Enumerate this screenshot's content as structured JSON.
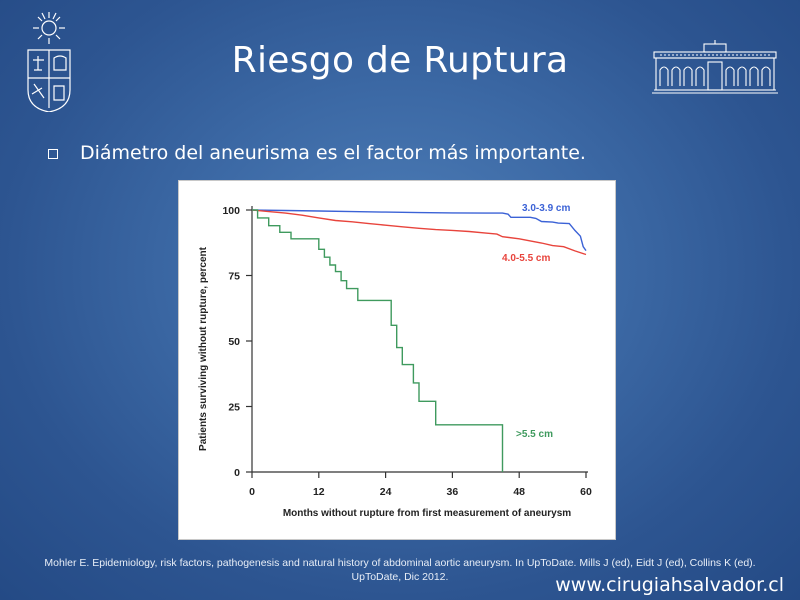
{
  "slide": {
    "title": "Riesgo de Ruptura",
    "bullet": "Diámetro del aneurisma es el factor más importante.",
    "citation_line1": "Mohler E. Epidemiology, risk factors, pathogenesis and natural history of abdominal aortic aneurysm.  In UpToDate.  Mills J (ed),  Eidt J (ed),  Collins K (ed).",
    "citation_line2": "UpToDate,  Dic 2012.",
    "website": "www.cirugiahsalvador.cl",
    "logos": {
      "left": "university-crest-icon",
      "right": "hospital-building-icon"
    },
    "colors": {
      "background": "#2d5591",
      "text": "#ffffff"
    }
  },
  "chart_data": {
    "type": "line",
    "title": "",
    "xlabel": "Months without rupture from first measurement of aneurysm",
    "ylabel": "Patients surviving without rupture, percent",
    "xlim": [
      0,
      60
    ],
    "ylim": [
      0,
      100
    ],
    "xticks": [
      0,
      12,
      24,
      36,
      48,
      60
    ],
    "yticks": [
      0,
      25,
      50,
      75,
      100
    ],
    "grid": false,
    "series": [
      {
        "name": "3.0-3.9 cm",
        "color": "#3b62d6",
        "points": [
          [
            0,
            100
          ],
          [
            6,
            99.8
          ],
          [
            12,
            99.6
          ],
          [
            18,
            99.4
          ],
          [
            24,
            99.2
          ],
          [
            30,
            99.0
          ],
          [
            36,
            98.9
          ],
          [
            42,
            98.8
          ],
          [
            45,
            98.8
          ],
          [
            46,
            98.4
          ],
          [
            46.5,
            97.2
          ],
          [
            50,
            97.2
          ],
          [
            51,
            96.8
          ],
          [
            52,
            95.6
          ],
          [
            54,
            95.4
          ],
          [
            55,
            95.0
          ],
          [
            57,
            94.8
          ],
          [
            58,
            92.2
          ],
          [
            59,
            90.0
          ],
          [
            59.5,
            86.0
          ],
          [
            60,
            84.5
          ]
        ]
      },
      {
        "name": "4.0-5.5 cm",
        "color": "#e8443c",
        "points": [
          [
            0,
            100
          ],
          [
            3,
            99.4
          ],
          [
            6,
            98.8
          ],
          [
            9,
            98.0
          ],
          [
            12,
            97.0
          ],
          [
            15,
            96.0
          ],
          [
            18,
            95.5
          ],
          [
            21,
            94.8
          ],
          [
            24,
            94.2
          ],
          [
            27,
            93.6
          ],
          [
            30,
            93.0
          ],
          [
            33,
            92.5
          ],
          [
            36,
            92.2
          ],
          [
            39,
            91.8
          ],
          [
            42,
            91.2
          ],
          [
            44,
            90.8
          ],
          [
            45,
            89.8
          ],
          [
            48,
            89.0
          ],
          [
            50,
            88.2
          ],
          [
            52,
            87.4
          ],
          [
            54,
            86.4
          ],
          [
            56,
            86.0
          ],
          [
            58,
            84.4
          ],
          [
            60,
            83.0
          ]
        ]
      },
      {
        "name": ">5.5 cm",
        "color": "#3f9a5e",
        "points": [
          [
            0,
            100
          ],
          [
            1,
            100
          ],
          [
            1,
            97
          ],
          [
            3,
            97
          ],
          [
            3,
            94
          ],
          [
            5,
            94
          ],
          [
            5,
            91.5
          ],
          [
            7,
            91.5
          ],
          [
            7,
            89
          ],
          [
            12,
            89
          ],
          [
            12,
            85
          ],
          [
            13,
            85
          ],
          [
            13,
            82
          ],
          [
            14,
            82
          ],
          [
            14,
            79
          ],
          [
            15,
            79
          ],
          [
            15,
            76.5
          ],
          [
            16,
            76.5
          ],
          [
            16,
            73
          ],
          [
            17,
            73
          ],
          [
            17,
            70
          ],
          [
            19,
            70
          ],
          [
            19,
            65.5
          ],
          [
            25,
            65.5
          ],
          [
            25,
            56
          ],
          [
            26,
            56
          ],
          [
            26,
            47.5
          ],
          [
            27,
            47.5
          ],
          [
            27,
            41
          ],
          [
            29,
            41
          ],
          [
            29,
            34
          ],
          [
            30,
            34
          ],
          [
            30,
            27
          ],
          [
            33,
            27
          ],
          [
            33,
            18
          ],
          [
            45,
            18
          ],
          [
            45,
            0
          ]
        ]
      }
    ]
  }
}
